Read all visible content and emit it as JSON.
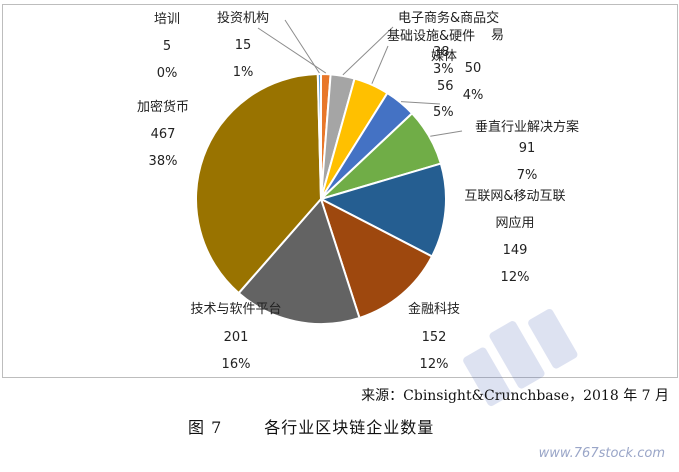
{
  "chart_data": {
    "type": "pie",
    "title": "",
    "slices": [
      {
        "name": "投资机构",
        "value": 15,
        "percent": "1%",
        "color": "#e8772a"
      },
      {
        "name": "电子商务&商品交易",
        "value": 38,
        "percent": "3%",
        "color": "#a5a5a5"
      },
      {
        "name": "基础设施&硬件",
        "value": 56,
        "percent": "5%",
        "color": "#ffc000"
      },
      {
        "name": "媒体",
        "value": 50,
        "percent": "4%",
        "color": "#4472c4"
      },
      {
        "name": "垂直行业解决方案",
        "value": 91,
        "percent": "7%",
        "color": "#70ad47"
      },
      {
        "name": "互联网&移动互联网应用",
        "value": 149,
        "percent": "12%",
        "color": "#255e91"
      },
      {
        "name": "金融科技",
        "value": 152,
        "percent": "12%",
        "color": "#9e480e"
      },
      {
        "name": "技术与软件平台",
        "value": 201,
        "percent": "16%",
        "color": "#636363"
      },
      {
        "name": "加密货币",
        "value": 467,
        "percent": "38%",
        "color": "#997300"
      },
      {
        "name": "培训",
        "value": 5,
        "percent": "0%",
        "color": "#5b9bd5"
      }
    ]
  },
  "labels": {
    "l0": {
      "name": "培训",
      "value": "5",
      "pct": "0%"
    },
    "l1": {
      "name": "投资机构",
      "value": "15",
      "pct": "1%"
    },
    "l2": {
      "name": "电子商务&商品交",
      "extra": "易"
    },
    "l3": {
      "name": "基础设施&硬件",
      "value": "56",
      "pct": "5%"
    },
    "l4": {
      "name": "媒体",
      "value": "50",
      "pct": "4%"
    },
    "l2b": {
      "value": "38",
      "pct": "3%"
    },
    "l5": {
      "name": "垂直行业解决方案",
      "value": "91",
      "pct": "7%"
    },
    "l6": {
      "name1": "互联网&移动互联",
      "name2": "网应用",
      "value": "149",
      "pct": "12%"
    },
    "l7": {
      "name": "金融科技",
      "value": "152",
      "pct": "12%"
    },
    "l8": {
      "name": "技术与软件平台",
      "value": "201",
      "pct": "16%"
    },
    "l9": {
      "name": "加密货币",
      "value": "467",
      "pct": "38%"
    }
  },
  "source": "来源：Cbinsight&Crunchbase，2018 年 7 月",
  "caption": {
    "number": "图 7",
    "text": "各行业区块链企业数量"
  },
  "watermark": "www.767stock.com"
}
